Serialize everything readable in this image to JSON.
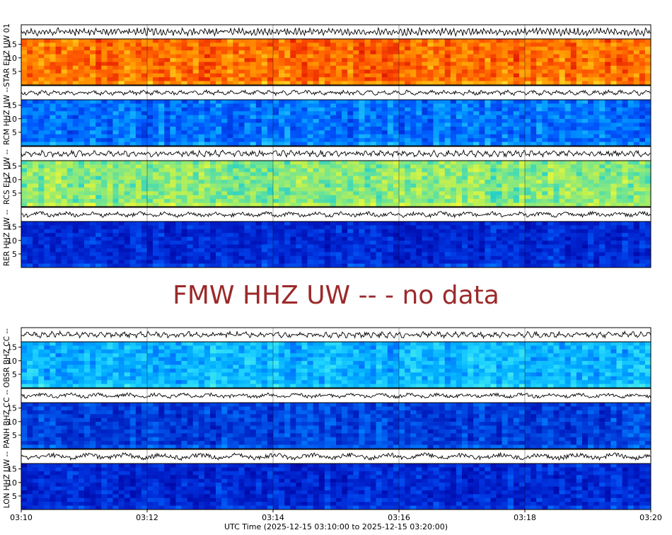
{
  "chart_data": {
    "type": "heatmap",
    "description_kind": "seismic helicorder spectrograms with waveform traces",
    "xlabel": "UTC Time (2025-12-15 03:10:00 to 2025-12-15 03:20:00)",
    "x_ticks": [
      "03:10",
      "03:12",
      "03:14",
      "03:16",
      "03:18",
      "03:20"
    ],
    "xlim": [
      "03:10:00",
      "03:20:00"
    ],
    "ylim": [
      0,
      17
    ],
    "y_ticks": [
      5,
      10,
      15
    ],
    "grid": true,
    "no_data_message": "FMW HHZ UW -- - no data",
    "no_data_color": "#9b2a2a",
    "groups": [
      {
        "panels": [
          {
            "label": "STAR EHZ UW 01",
            "palette": "hot",
            "wave_amp": 0.85,
            "wave_freq": 60
          },
          {
            "label": "RCM HHZ UW --",
            "palette": "blue",
            "wave_amp": 0.55,
            "wave_freq": 18
          },
          {
            "label": "RCS EHZ UW --",
            "palette": "cyan",
            "wave_amp": 0.7,
            "wave_freq": 30
          },
          {
            "label": "RER HHZ UW --",
            "palette": "deepblue",
            "wave_amp": 0.6,
            "wave_freq": 9
          }
        ]
      },
      {
        "panels": [
          {
            "label": "OBSR BHZ CC --",
            "palette": "cyanblue",
            "wave_amp": 0.7,
            "wave_freq": 28
          },
          {
            "label": "PANH BHZ CC --",
            "palette": "deepblue2",
            "wave_amp": 0.55,
            "wave_freq": 8
          },
          {
            "label": "LON HHZ UW --",
            "palette": "deepblue",
            "wave_amp": 0.75,
            "wave_freq": 6
          }
        ]
      }
    ]
  }
}
